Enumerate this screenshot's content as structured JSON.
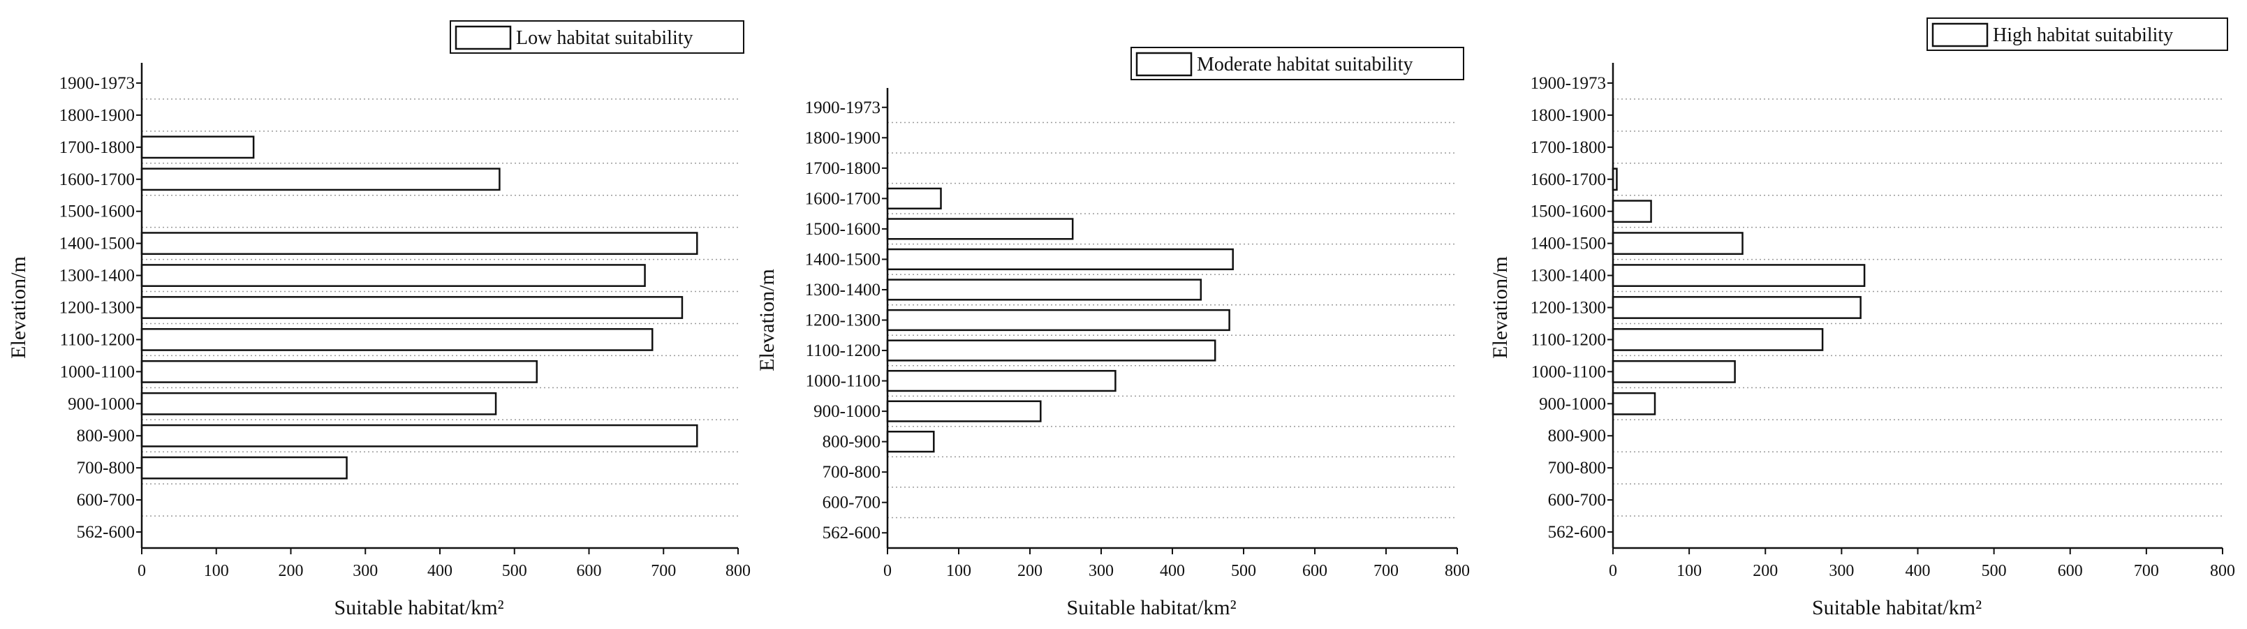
{
  "chart_data": [
    {
      "type": "bar",
      "orientation": "horizontal",
      "categories": [
        "562-600",
        "600-700",
        "700-800",
        "800-900",
        "900-1000",
        "1000-1100",
        "1100-1200",
        "1200-1300",
        "1300-1400",
        "1400-1500",
        "1500-1600",
        "1600-1700",
        "1700-1800",
        "1800-1900",
        "1900-1973"
      ],
      "series": [
        {
          "name": "Low habitat suitability",
          "values": [
            0,
            0,
            275,
            745,
            475,
            530,
            685,
            725,
            675,
            745,
            0,
            480,
            150,
            0,
            0
          ]
        }
      ],
      "xlabel": "Suitable habitat/km²",
      "ylabel": "Elevation/m",
      "xlim": [
        0,
        800
      ],
      "xticks": [
        0,
        100,
        200,
        300,
        400,
        500,
        600,
        700,
        800
      ],
      "grid": "dotted horizontal",
      "legend_position": "top-right"
    },
    {
      "type": "bar",
      "orientation": "horizontal",
      "categories": [
        "562-600",
        "600-700",
        "700-800",
        "800-900",
        "900-1000",
        "1000-1100",
        "1100-1200",
        "1200-1300",
        "1300-1400",
        "1400-1500",
        "1500-1600",
        "1600-1700",
        "1700-1800",
        "1800-1900",
        "1900-1973"
      ],
      "series": [
        {
          "name": "Moderate habitat suitability",
          "values": [
            0,
            0,
            0,
            65,
            215,
            320,
            460,
            480,
            440,
            485,
            260,
            75,
            0,
            0,
            0
          ]
        }
      ],
      "xlabel": "Suitable habitat/km²",
      "ylabel": "Elevation/m",
      "xlim": [
        0,
        800
      ],
      "xticks": [
        0,
        100,
        200,
        300,
        400,
        500,
        600,
        700,
        800
      ],
      "grid": "dotted horizontal",
      "legend_position": "top-right"
    },
    {
      "type": "bar",
      "orientation": "horizontal",
      "categories": [
        "562-600",
        "600-700",
        "700-800",
        "800-900",
        "900-1000",
        "1000-1100",
        "1100-1200",
        "1200-1300",
        "1300-1400",
        "1400-1500",
        "1500-1600",
        "1600-1700",
        "1700-1800",
        "1800-1900",
        "1900-1973"
      ],
      "series": [
        {
          "name": "High habitat suitability",
          "values": [
            0,
            0,
            0,
            0,
            55,
            160,
            275,
            325,
            330,
            170,
            50,
            5,
            0,
            0,
            0
          ]
        }
      ],
      "xlabel": "Suitable habitat/km²",
      "ylabel": "Elevation/m",
      "xlim": [
        0,
        800
      ],
      "xticks": [
        0,
        100,
        200,
        300,
        400,
        500,
        600,
        700,
        800
      ],
      "grid": "dotted horizontal",
      "legend_position": "top-right"
    }
  ]
}
